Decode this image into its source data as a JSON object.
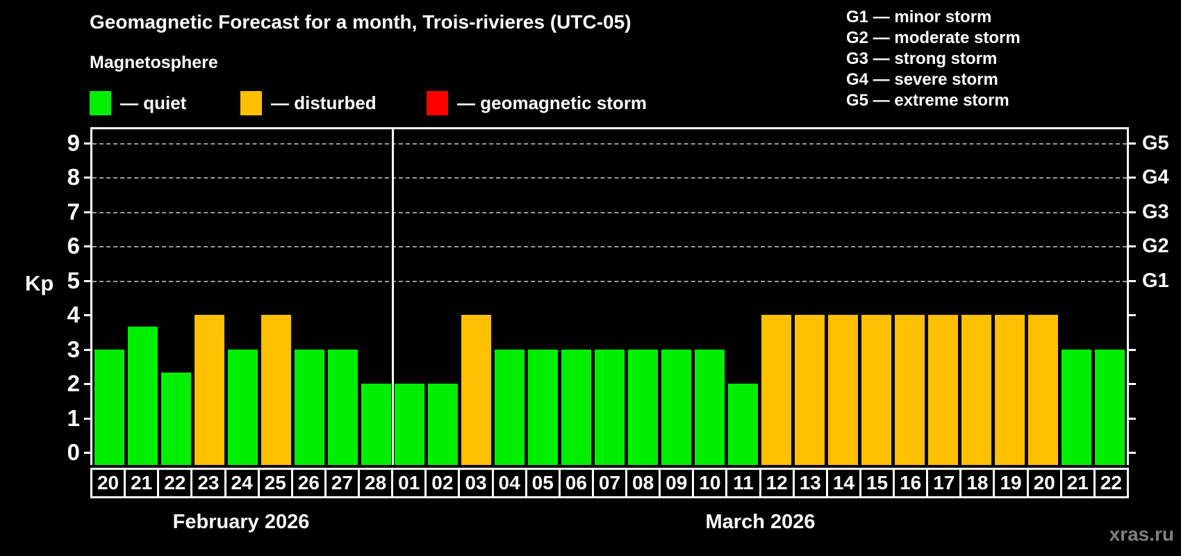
{
  "title": "Geomagnetic Forecast for a month, Trois-rivieres (UTC-05)",
  "subtitle": "Magnetosphere",
  "legend": [
    {
      "name": "quiet",
      "label": "— quiet",
      "color": "#00ef00"
    },
    {
      "name": "disturbed",
      "label": "— disturbed",
      "color": "#ffc000"
    },
    {
      "name": "geomagnetic-storm",
      "label": "— geomagnetic storm",
      "color": "#ff0000"
    }
  ],
  "g_scale": [
    "G1 — minor storm",
    "G2 — moderate storm",
    "G3 — strong storm",
    "G4 — severe storm",
    "G5 — extreme storm"
  ],
  "watermark": "xras.ru",
  "chart_data": {
    "type": "bar",
    "title": "Geomagnetic Forecast for a month, Trois-rivieres (UTC-05)",
    "ylabel": "Kp",
    "ylim": [
      0,
      9
    ],
    "yticks": [
      0,
      1,
      2,
      3,
      4,
      5,
      6,
      7,
      8,
      9
    ],
    "gridline_levels": [
      5,
      6,
      7,
      8,
      9
    ],
    "grid": "dashed, only at storm levels",
    "right_axis": [
      {
        "kp": 5,
        "label": "G1"
      },
      {
        "kp": 6,
        "label": "G2"
      },
      {
        "kp": 7,
        "label": "G3"
      },
      {
        "kp": 8,
        "label": "G4"
      },
      {
        "kp": 9,
        "label": "G5"
      }
    ],
    "status_colors": {
      "quiet": "#00ef00",
      "disturbed": "#ffc000",
      "storm": "#ff0000"
    },
    "months": [
      {
        "label": "February 2026",
        "days": [
          {
            "day": "20",
            "kp": 3,
            "status": "quiet"
          },
          {
            "day": "21",
            "kp": 3.67,
            "status": "quiet"
          },
          {
            "day": "22",
            "kp": 2.33,
            "status": "quiet"
          },
          {
            "day": "23",
            "kp": 4,
            "status": "disturbed"
          },
          {
            "day": "24",
            "kp": 3,
            "status": "quiet"
          },
          {
            "day": "25",
            "kp": 4,
            "status": "disturbed"
          },
          {
            "day": "26",
            "kp": 3,
            "status": "quiet"
          },
          {
            "day": "27",
            "kp": 3,
            "status": "quiet"
          },
          {
            "day": "28",
            "kp": 2,
            "status": "quiet"
          }
        ]
      },
      {
        "label": "March 2026",
        "days": [
          {
            "day": "01",
            "kp": 2,
            "status": "quiet"
          },
          {
            "day": "02",
            "kp": 2,
            "status": "quiet"
          },
          {
            "day": "03",
            "kp": 4,
            "status": "disturbed"
          },
          {
            "day": "04",
            "kp": 3,
            "status": "quiet"
          },
          {
            "day": "05",
            "kp": 3,
            "status": "quiet"
          },
          {
            "day": "06",
            "kp": 3,
            "status": "quiet"
          },
          {
            "day": "07",
            "kp": 3,
            "status": "quiet"
          },
          {
            "day": "08",
            "kp": 3,
            "status": "quiet"
          },
          {
            "day": "09",
            "kp": 3,
            "status": "quiet"
          },
          {
            "day": "10",
            "kp": 3,
            "status": "quiet"
          },
          {
            "day": "11",
            "kp": 2,
            "status": "quiet"
          },
          {
            "day": "12",
            "kp": 4,
            "status": "disturbed"
          },
          {
            "day": "13",
            "kp": 4,
            "status": "disturbed"
          },
          {
            "day": "14",
            "kp": 4,
            "status": "disturbed"
          },
          {
            "day": "15",
            "kp": 4,
            "status": "disturbed"
          },
          {
            "day": "16",
            "kp": 4,
            "status": "disturbed"
          },
          {
            "day": "17",
            "kp": 4,
            "status": "disturbed"
          },
          {
            "day": "18",
            "kp": 4,
            "status": "disturbed"
          },
          {
            "day": "19",
            "kp": 4,
            "status": "disturbed"
          },
          {
            "day": "20",
            "kp": 4,
            "status": "disturbed"
          },
          {
            "day": "21",
            "kp": 3,
            "status": "quiet"
          },
          {
            "day": "22",
            "kp": 3,
            "status": "quiet"
          }
        ]
      }
    ]
  }
}
